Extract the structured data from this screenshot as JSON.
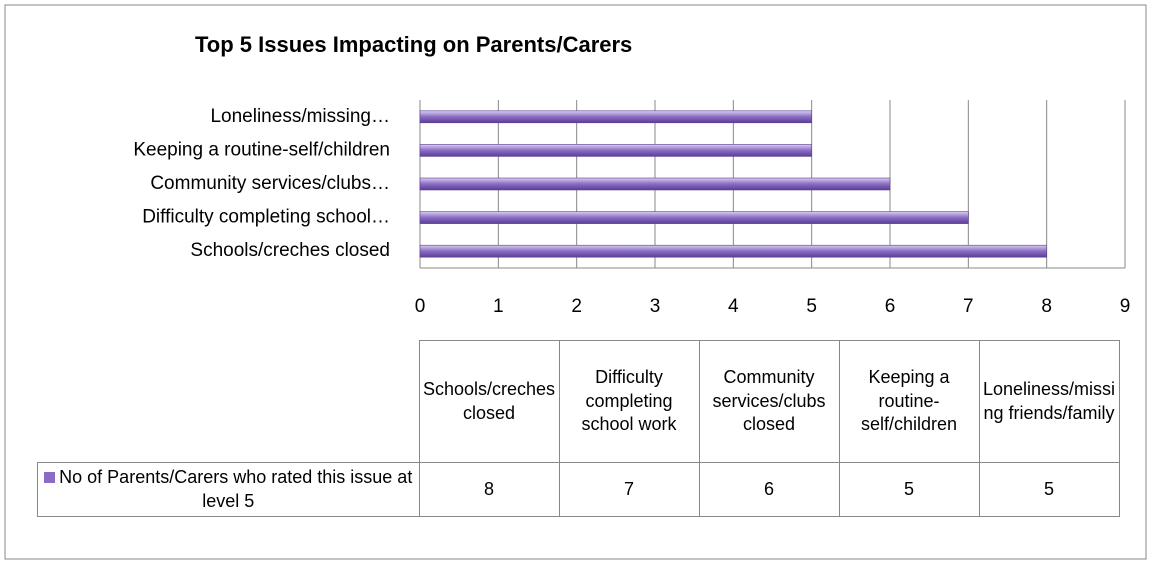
{
  "chart_data": {
    "type": "bar",
    "orientation": "horizontal",
    "title": "Top 5 Issues Impacting on Parents/Carers",
    "categories": [
      "Schools/creches closed",
      "Difficulty completing school…",
      "Community services/clubs…",
      "Keeping a routine-self/children",
      "Loneliness/missing…"
    ],
    "series": [
      {
        "name": "No of Parents/Carers who rated this issue at level 5",
        "color": "#8a6cc4",
        "values": [
          8,
          7,
          6,
          5,
          5
        ]
      }
    ],
    "xlim": [
      0,
      9
    ],
    "xticks": [
      0,
      1,
      2,
      3,
      4,
      5,
      6,
      7,
      8,
      9
    ],
    "grid": true,
    "data_table": {
      "columns": [
        "Schools/creches closed",
        "Difficulty completing school work",
        "Community services/clubs closed",
        "Keeping a routine-self/children",
        "Loneliness/missing friends/family"
      ]
    }
  }
}
